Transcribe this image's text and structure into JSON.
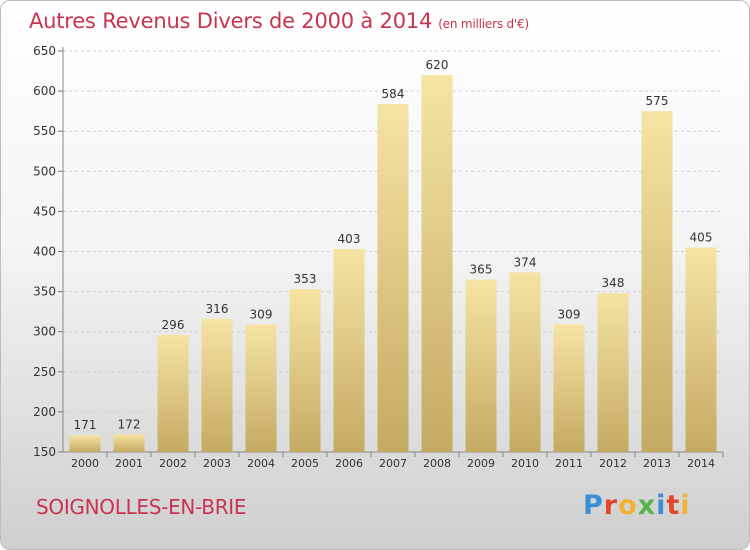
{
  "header": {
    "title": "Autres Revenus Divers de 2000 à 2014",
    "subtitle": "(en milliers d'€)"
  },
  "footer": {
    "city": "SOIGNOLLES-EN-BRIE",
    "logo_letters": [
      "P",
      "r",
      "o",
      "x",
      "i",
      "t",
      "i"
    ],
    "logo_colors": [
      "#3a8fd6",
      "#e4462d",
      "#f2b233",
      "#5bb248",
      "#3a8fd6",
      "#e4462d",
      "#f2b233"
    ]
  },
  "chart_data": {
    "type": "bar",
    "title": "Autres Revenus Divers de 2000 à 2014",
    "subtitle": "(en milliers d'€)",
    "categories": [
      "2000",
      "2001",
      "2002",
      "2003",
      "2004",
      "2005",
      "2006",
      "2007",
      "2008",
      "2009",
      "2010",
      "2011",
      "2012",
      "2013",
      "2014"
    ],
    "values": [
      171,
      172,
      296,
      316,
      309,
      353,
      403,
      584,
      620,
      365,
      374,
      309,
      348,
      575,
      405
    ],
    "ylim": [
      150,
      650
    ],
    "yticks": [
      150,
      200,
      250,
      300,
      350,
      400,
      450,
      500,
      550,
      600,
      650
    ],
    "grid": true,
    "bar_color": "#e8cf88"
  }
}
